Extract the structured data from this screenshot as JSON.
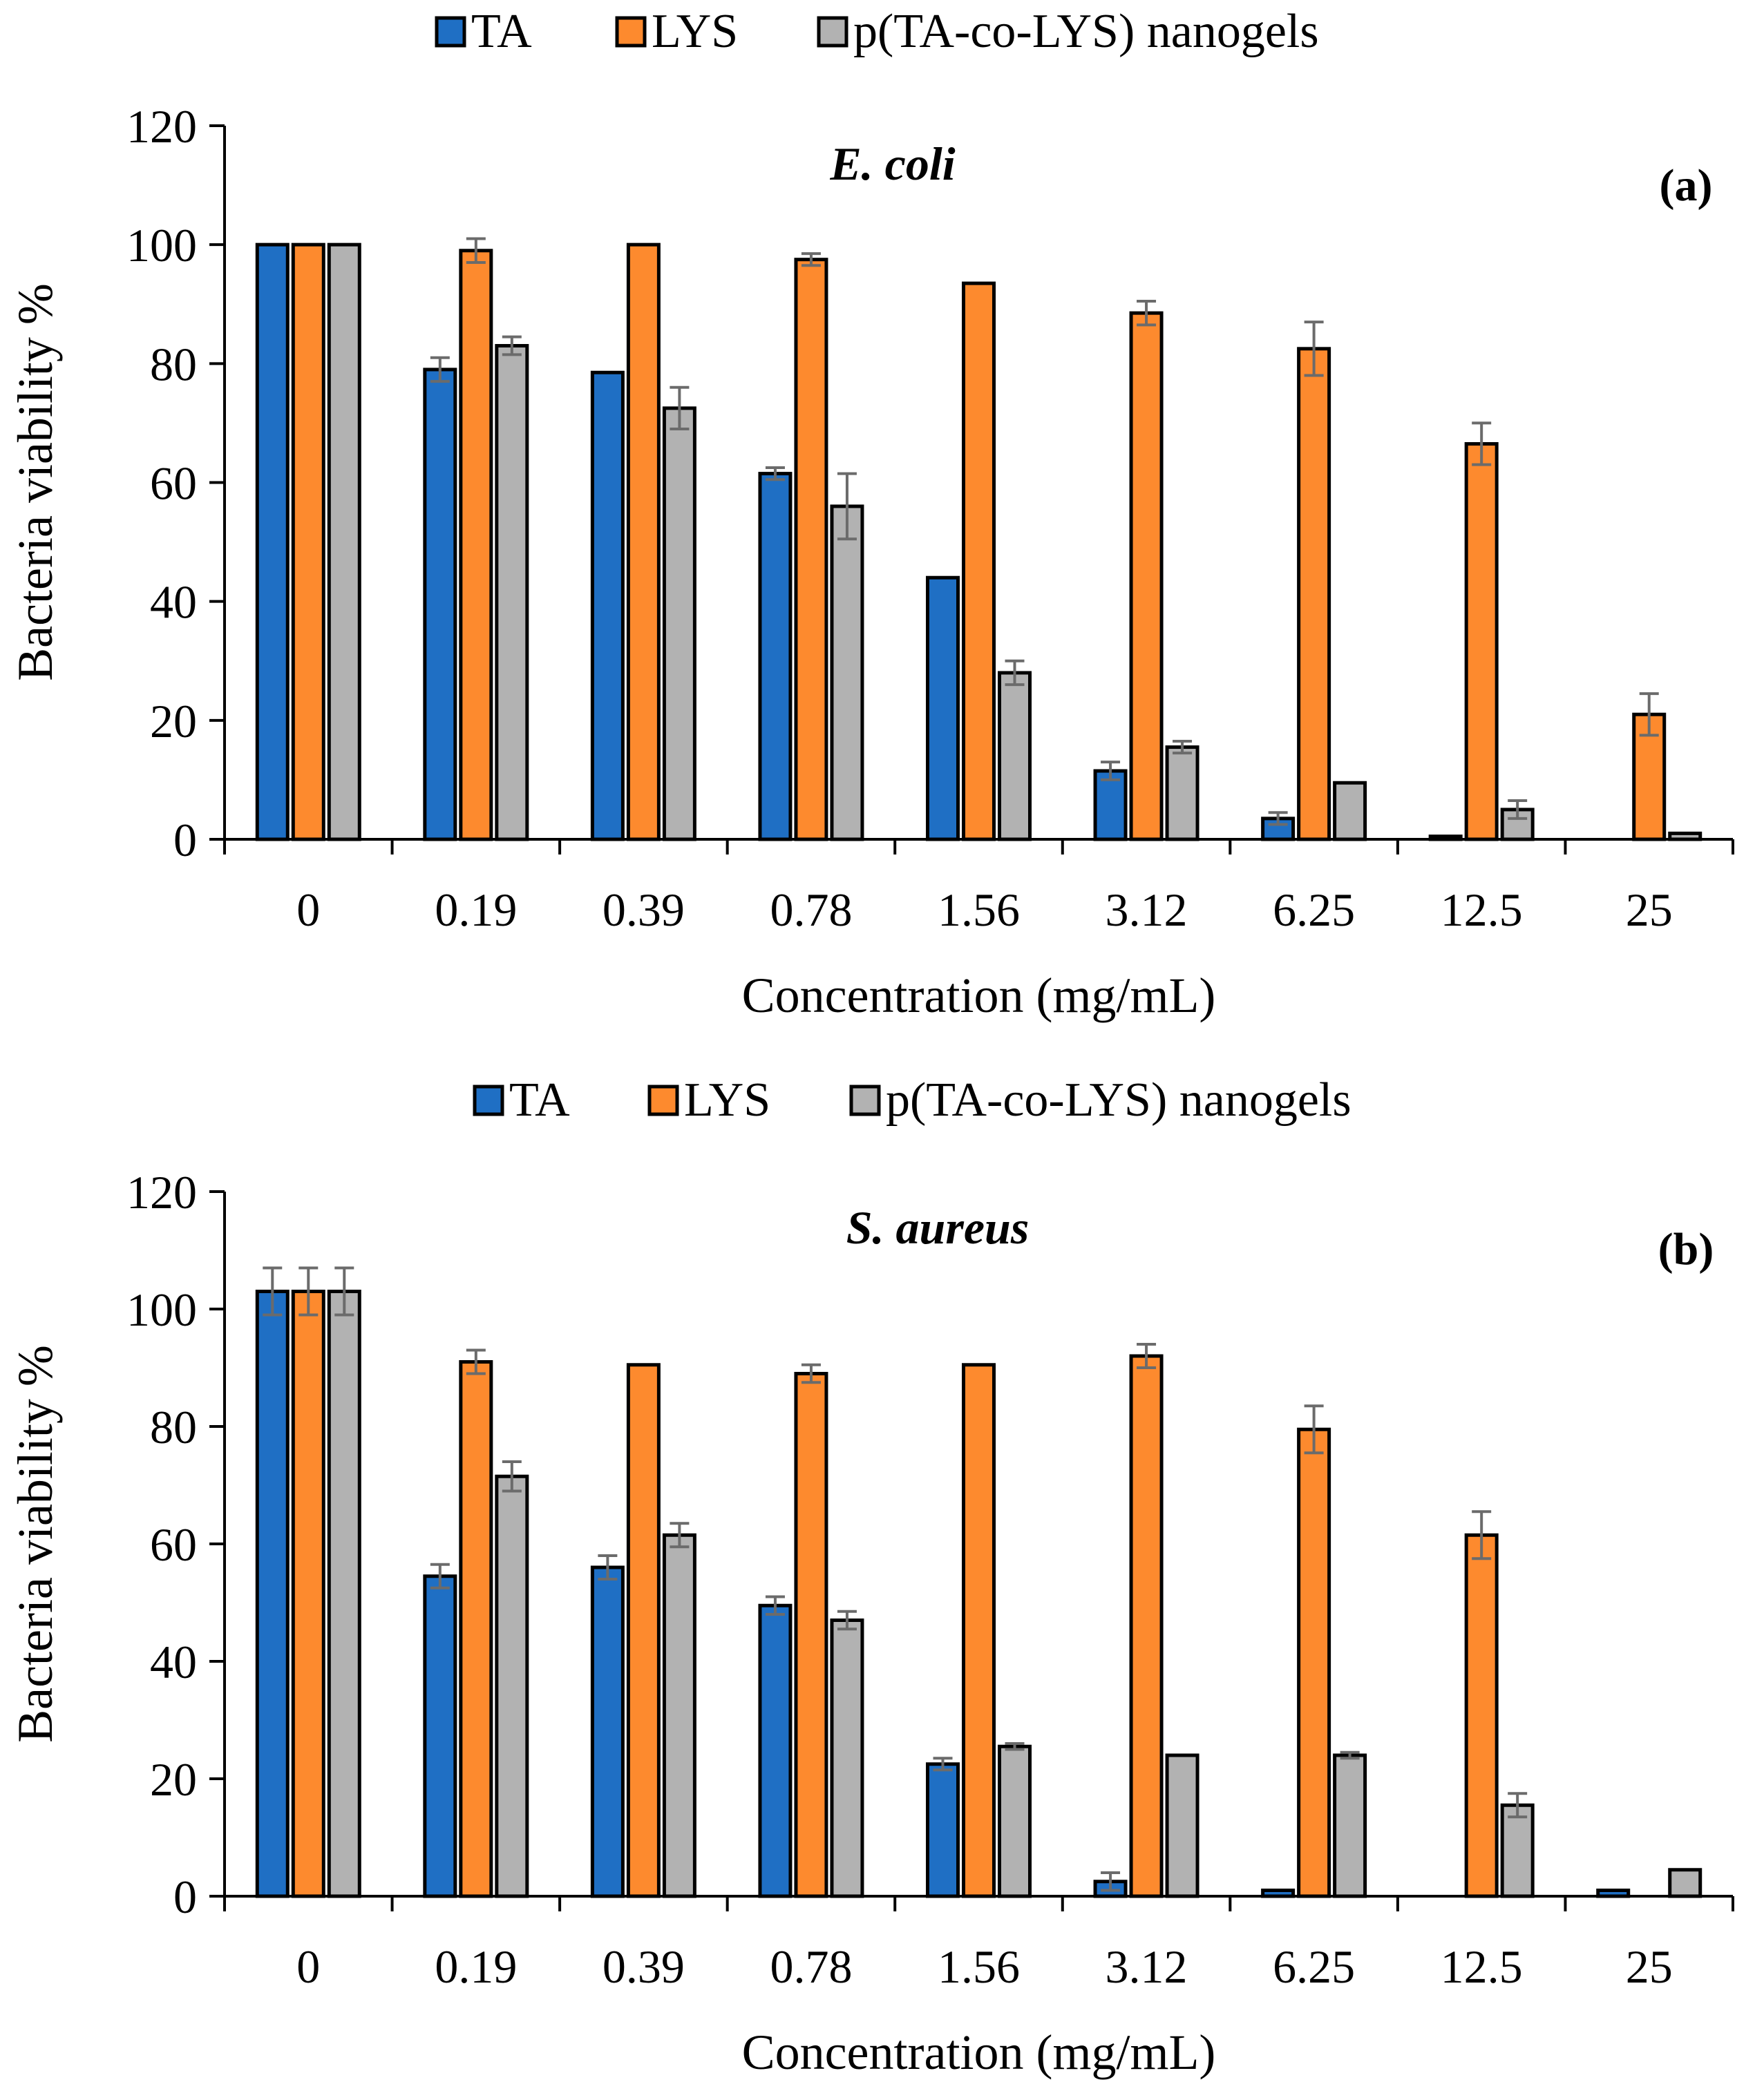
{
  "colors": {
    "TA": "#1f6fc4",
    "LYS": "#fd8a2e",
    "nanogels": "#b2b2b2",
    "error_bar": "#6b6b6b",
    "outline": "#000000"
  },
  "chart_data": [
    {
      "type": "bar",
      "title": "E. coli",
      "panel_label": "(a)",
      "xlabel": "Concentration (mg/mL)",
      "ylabel": "Bacteria viability %",
      "ylim": [
        0,
        120
      ],
      "yticks": [
        "0",
        "20",
        "40",
        "60",
        "80",
        "100",
        "120"
      ],
      "legend_position": "top-center",
      "categories": [
        "0",
        "0.19",
        "0.39",
        "0.78",
        "1.56",
        "3.12",
        "6.25",
        "12.5",
        "25"
      ],
      "series": [
        {
          "name": "TA",
          "key": "TA",
          "values": [
            100,
            79,
            78.5,
            61.5,
            44,
            11.5,
            3.5,
            0.5,
            0
          ],
          "errors": [
            0,
            2,
            0,
            1,
            0,
            1.5,
            1,
            0,
            0
          ]
        },
        {
          "name": "LYS",
          "key": "LYS",
          "values": [
            100,
            99,
            100,
            97.5,
            93.5,
            88.5,
            82.5,
            66.5,
            21
          ],
          "errors": [
            0,
            2,
            0,
            1,
            0,
            2,
            4.5,
            3.5,
            3.5
          ]
        },
        {
          "name": "p(TA-co-LYS) nanogels",
          "key": "nanogels",
          "values": [
            100,
            83,
            72.5,
            56,
            28,
            15.5,
            9.5,
            5,
            1
          ],
          "errors": [
            0,
            1.5,
            3.5,
            5.5,
            2,
            1,
            0,
            1.5,
            0
          ]
        }
      ]
    },
    {
      "type": "bar",
      "title": "S. aureus",
      "panel_label": "(b)",
      "xlabel": "Concentration (mg/mL)",
      "ylabel": "Bacteria viability %",
      "ylim": [
        0,
        120
      ],
      "yticks": [
        "0",
        "20",
        "40",
        "60",
        "80",
        "100",
        "120"
      ],
      "legend_position": "top-center",
      "categories": [
        "0",
        "0.19",
        "0.39",
        "0.78",
        "1.56",
        "3.12",
        "6.25",
        "12.5",
        "25"
      ],
      "series": [
        {
          "name": "TA",
          "key": "TA",
          "values": [
            103,
            54.5,
            56,
            49.5,
            22.5,
            2.5,
            1,
            0,
            1
          ],
          "errors": [
            4,
            2,
            2,
            1.5,
            1,
            1.5,
            0,
            0,
            0
          ]
        },
        {
          "name": "LYS",
          "key": "LYS",
          "values": [
            103,
            91,
            90.5,
            89,
            90.5,
            92,
            79.5,
            61.5,
            0
          ],
          "errors": [
            4,
            2,
            0,
            1.5,
            0,
            2,
            4,
            4,
            0
          ]
        },
        {
          "name": "p(TA-co-LYS) nanogels",
          "key": "nanogels",
          "values": [
            103,
            71.5,
            61.5,
            47,
            25.5,
            24,
            24,
            15.5,
            4.5
          ],
          "errors": [
            4,
            2.5,
            2,
            1.5,
            0.5,
            0,
            0.5,
            2,
            0
          ]
        }
      ]
    }
  ]
}
